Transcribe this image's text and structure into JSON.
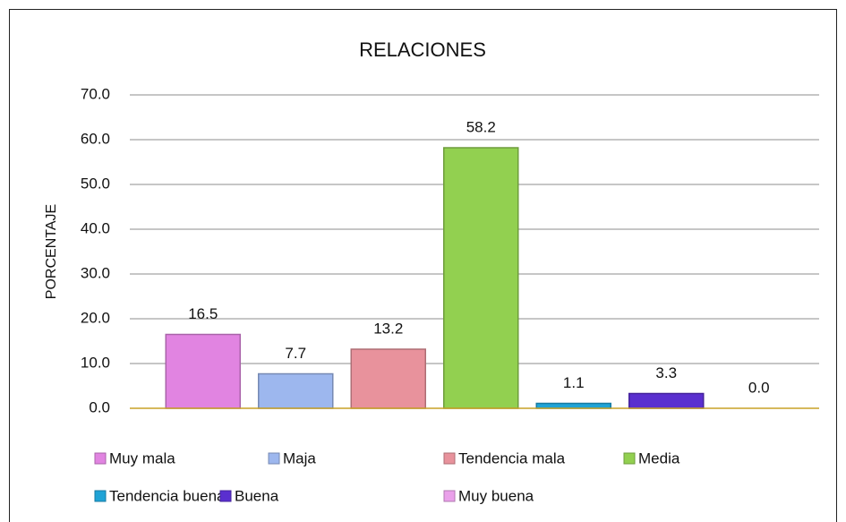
{
  "chart_data": {
    "type": "bar",
    "title": "RELACIONES",
    "y_label": "PORCENTAJE",
    "categories": [
      "Muy mala",
      "Maja",
      "Tendencia mala",
      "Media",
      "Tendencia buena",
      "Buena",
      "Muy buena"
    ],
    "values": [
      16.5,
      7.7,
      13.2,
      58.2,
      1.1,
      3.3,
      0
    ],
    "value_labels": [
      "16.5",
      "7.7",
      "13.2",
      "58.2",
      "1.1",
      "3.3",
      "0.0"
    ],
    "colors": [
      "#e184e1",
      "#9db7ee",
      "#e8929c",
      "#92d050",
      "#1fa3d6",
      "#5a2fcf",
      "#eaa0ea"
    ],
    "ylim": [
      0,
      70
    ],
    "yticks": [
      {
        "value": 0,
        "label": "0.0"
      },
      {
        "value": 10,
        "label": "10.0"
      },
      {
        "value": 20,
        "label": "20.0"
      },
      {
        "value": 30,
        "label": "30.0"
      },
      {
        "value": 40,
        "label": "40.0"
      },
      {
        "value": 50,
        "label": "50.0"
      },
      {
        "value": 60,
        "label": "60.0"
      },
      {
        "value": 70,
        "label": "70.0"
      }
    ],
    "grid": true,
    "legend": "bottom"
  }
}
